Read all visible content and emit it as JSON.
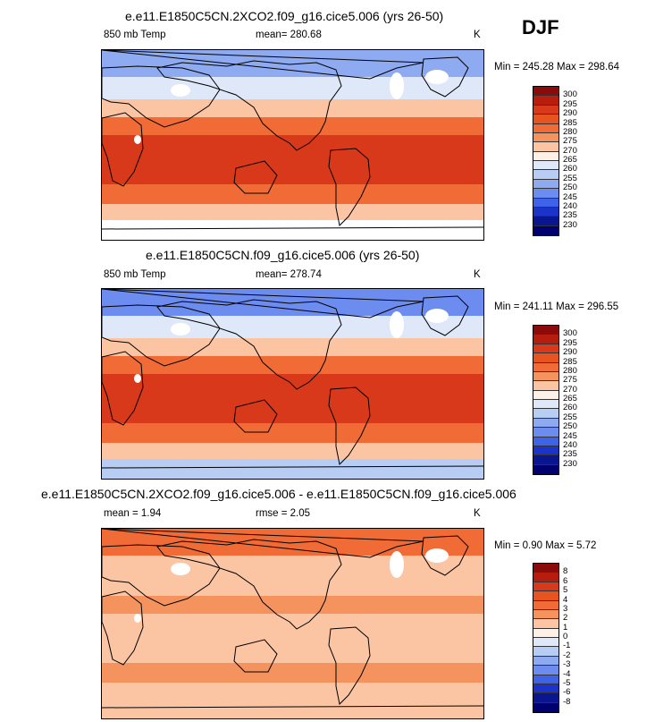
{
  "season": "DJF",
  "panels": [
    {
      "title": "e.e11.E1850C5CN.2XCO2.f09_g16.cice5.006 (yrs 26-50)",
      "left_label": "850 mb Temp",
      "center_label": "mean= 280.68",
      "units": "K",
      "minmax": "Min = 245.28 Max = 298.64",
      "colorbar_levels": [
        "300",
        "295",
        "290",
        "285",
        "280",
        "275",
        "270",
        "265",
        "260",
        "255",
        "250",
        "245",
        "240",
        "235",
        "230"
      ],
      "colorbar_colors": [
        "#8b0a0a",
        "#b71c0c",
        "#d8391a",
        "#e8541f",
        "#f06b35",
        "#f5935f",
        "#fbc5a4",
        "#fdf0e6",
        "#dfe8f8",
        "#b8cdf3",
        "#8eaaf0",
        "#6c8cf0",
        "#3e62e8",
        "#1b33c8",
        "#0a1590",
        "#000070"
      ],
      "map_colors": {
        "polar_s": "#ffffff",
        "cold": "#8eaaf0",
        "cool": "#dfe8f8",
        "mild": "#fbc5a4",
        "warm": "#f06b35",
        "hot": "#d8391a"
      }
    },
    {
      "title": "e.e11.E1850C5CN.f09_g16.cice5.006 (yrs 26-50)",
      "left_label": "850 mb Temp",
      "center_label": "mean= 278.74",
      "units": "K",
      "minmax": "Min = 241.11 Max = 296.55",
      "colorbar_levels": [
        "300",
        "295",
        "290",
        "285",
        "280",
        "275",
        "270",
        "265",
        "260",
        "255",
        "250",
        "245",
        "240",
        "235",
        "230"
      ],
      "colorbar_colors": [
        "#8b0a0a",
        "#b71c0c",
        "#d8391a",
        "#e8541f",
        "#f06b35",
        "#f5935f",
        "#fbc5a4",
        "#fdf0e6",
        "#dfe8f8",
        "#b8cdf3",
        "#8eaaf0",
        "#6c8cf0",
        "#3e62e8",
        "#1b33c8",
        "#0a1590",
        "#000070"
      ],
      "map_colors": {
        "polar_s": "#b8cdf3",
        "cold": "#6c8cf0",
        "cool": "#dfe8f8",
        "mild": "#fbc5a4",
        "warm": "#f06b35",
        "hot": "#d8391a"
      }
    },
    {
      "title": "e.e11.E1850C5CN.2XCO2.f09_g16.cice5.006 - e.e11.E1850C5CN.f09_g16.cice5.006",
      "left_label": "mean =   1.94",
      "center_label": "rmse =   2.05",
      "units": "K",
      "minmax": "Min =   0.90 Max =   5.72",
      "colorbar_levels": [
        "8",
        "6",
        "5",
        "4",
        "3",
        "2",
        "1",
        "0",
        "-1",
        "-2",
        "-3",
        "-4",
        "-5",
        "-6",
        "-8"
      ],
      "colorbar_colors": [
        "#8b0a0a",
        "#b71c0c",
        "#d8391a",
        "#e8541f",
        "#f06b35",
        "#f5935f",
        "#fbc5a4",
        "#fdf0e6",
        "#dfe8f8",
        "#b8cdf3",
        "#8eaaf0",
        "#6c8cf0",
        "#3e62e8",
        "#1b33c8",
        "#0a1590",
        "#000070"
      ],
      "map_colors": {
        "polar_s": "#fbc5a4",
        "cold": "#f06b35",
        "cool": "#fbc5a4",
        "mild": "#fbc5a4",
        "warm": "#f5935f",
        "hot": "#fbc5a4"
      }
    }
  ]
}
